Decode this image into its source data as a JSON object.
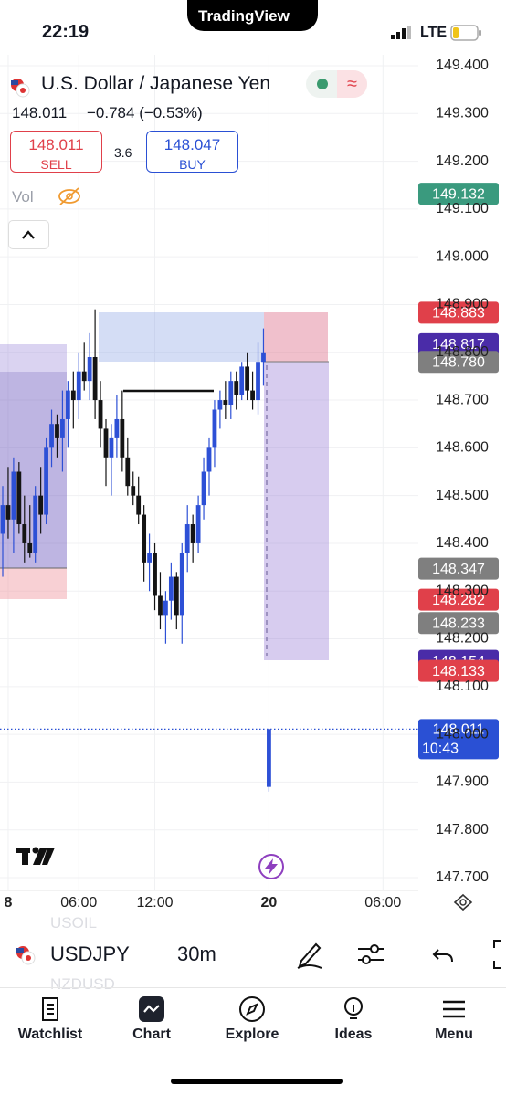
{
  "status_bar": {
    "time": "22:19",
    "app": "TradingView",
    "network": "LTE"
  },
  "header": {
    "symbol_name": "U.S. Dollar / Japanese Yen",
    "price": "148.011",
    "change": "−0.784 (−0.53%)",
    "sell": {
      "price": "148.011",
      "label": "SELL"
    },
    "spread": "3.6",
    "buy": {
      "price": "148.047",
      "label": "BUY"
    },
    "volume_label": "Vol"
  },
  "chart_data": {
    "type": "candlestick",
    "open": [
      148.42,
      148.48,
      148.45,
      148.55,
      148.44,
      148.4,
      148.38,
      148.5,
      148.46,
      148.6,
      148.65,
      148.62,
      148.66,
      148.72,
      148.7,
      148.76,
      148.74,
      148.79,
      148.7,
      148.64,
      148.58,
      148.62,
      148.66,
      148.58,
      148.52,
      148.5,
      148.46,
      148.36,
      148.38,
      148.29,
      148.25,
      148.28,
      148.33,
      148.25,
      148.38,
      148.44,
      148.4,
      148.48,
      148.55,
      148.6,
      148.68,
      148.7,
      148.69,
      148.74,
      148.71,
      148.77,
      148.72,
      148.7,
      148.78,
      147.89
    ],
    "high": [
      148.52,
      148.56,
      148.58,
      148.57,
      148.5,
      148.48,
      148.52,
      148.56,
      148.62,
      148.68,
      148.67,
      148.72,
      148.74,
      148.76,
      148.8,
      148.82,
      148.84,
      148.89,
      148.74,
      148.66,
      148.65,
      148.71,
      148.72,
      148.62,
      148.55,
      148.54,
      148.48,
      148.42,
      148.4,
      148.34,
      148.3,
      148.36,
      148.34,
      148.4,
      148.48,
      148.46,
      148.5,
      148.58,
      148.62,
      148.7,
      148.72,
      148.74,
      148.76,
      148.76,
      148.78,
      148.8,
      148.76,
      148.82,
      148.85,
      148.011
    ],
    "low": [
      148.33,
      148.41,
      148.38,
      148.42,
      148.36,
      148.37,
      148.36,
      148.42,
      148.44,
      148.56,
      148.58,
      148.55,
      148.6,
      148.64,
      148.66,
      148.72,
      148.7,
      148.66,
      148.6,
      148.52,
      148.5,
      148.58,
      148.55,
      148.5,
      148.48,
      148.44,
      148.32,
      148.3,
      148.26,
      148.22,
      148.19,
      148.24,
      148.22,
      148.19,
      148.34,
      148.36,
      148.38,
      148.45,
      148.5,
      148.56,
      148.64,
      148.66,
      148.66,
      148.68,
      148.7,
      148.7,
      148.68,
      148.67,
      148.73,
      147.88
    ],
    "close": [
      148.48,
      148.45,
      148.55,
      148.44,
      148.4,
      148.38,
      148.5,
      148.46,
      148.6,
      148.65,
      148.62,
      148.66,
      148.72,
      148.7,
      148.76,
      148.74,
      148.79,
      148.7,
      148.64,
      148.58,
      148.62,
      148.66,
      148.58,
      148.52,
      148.5,
      148.46,
      148.36,
      148.38,
      148.29,
      148.25,
      148.28,
      148.33,
      148.25,
      148.38,
      148.44,
      148.4,
      148.48,
      148.55,
      148.6,
      148.68,
      148.7,
      148.69,
      148.74,
      148.71,
      148.77,
      148.72,
      148.7,
      148.78,
      148.8,
      148.011
    ],
    "up_color": "#2d50d6",
    "down_color": "#141414",
    "xlim": [
      0,
      76
    ],
    "xticks": [
      {
        "value": 1,
        "label": "8"
      },
      {
        "value": 14,
        "label": "06:00"
      },
      {
        "value": 28,
        "label": "12:00"
      },
      {
        "value": 49,
        "label": "20"
      },
      {
        "value": 70,
        "label": "06:00"
      }
    ],
    "ylim": [
      147.7,
      149.4
    ],
    "yticks": [
      {
        "value": 149.4,
        "label": "149.400"
      },
      {
        "value": 149.3,
        "label": "149.300"
      },
      {
        "value": 149.2,
        "label": "149.200"
      },
      {
        "value": 149.1,
        "label": "149.100"
      },
      {
        "value": 149.0,
        "label": "149.000"
      },
      {
        "value": 148.9,
        "label": "148.900"
      },
      {
        "value": 148.8,
        "label": "148.800"
      },
      {
        "value": 148.7,
        "label": "148.700"
      },
      {
        "value": 148.6,
        "label": "148.600"
      },
      {
        "value": 148.5,
        "label": "148.500"
      },
      {
        "value": 148.4,
        "label": "148.400"
      },
      {
        "value": 148.3,
        "label": "148.300"
      },
      {
        "value": 148.2,
        "label": "148.200"
      },
      {
        "value": 148.1,
        "label": "148.100"
      },
      {
        "value": 148.0,
        "label": "148.000"
      },
      {
        "value": 147.9,
        "label": "147.900"
      },
      {
        "value": 147.8,
        "label": "147.800"
      },
      {
        "value": 147.7,
        "label": "147.700"
      }
    ],
    "grid": true,
    "price_labels": [
      {
        "value": 149.132,
        "label": "149.132",
        "color": "#3a9a7e"
      },
      {
        "value": 148.883,
        "label": "148.883",
        "color": "#e0404a"
      },
      {
        "value": 148.817,
        "label": "148.817",
        "color": "#4a2ca8"
      },
      {
        "value": 148.78,
        "label": "148.780",
        "color": "#7f7f7f"
      },
      {
        "value": 148.347,
        "label": "148.347",
        "color": "#7f7f7f"
      },
      {
        "value": 148.282,
        "label": "148.282",
        "color": "#e0404a"
      },
      {
        "value": 148.233,
        "label": "148.233",
        "color": "#7f7f7f"
      },
      {
        "value": 148.154,
        "label": "148.154",
        "color": "#4a2ca8"
      },
      {
        "value": 148.133,
        "label": "148.133",
        "color": "#e0404a"
      }
    ],
    "current_price": {
      "value": 148.011,
      "label": "148.011",
      "countdown": "10:43",
      "color": "#2a50d4"
    }
  },
  "toolbar": {
    "symbol": "USDJPY",
    "interval": "30m",
    "faded_above": "USOIL",
    "faded_below": "NZDUSD"
  },
  "nav": [
    {
      "label": "Watchlist"
    },
    {
      "label": "Chart"
    },
    {
      "label": "Explore"
    },
    {
      "label": "Ideas"
    },
    {
      "label": "Menu"
    }
  ]
}
